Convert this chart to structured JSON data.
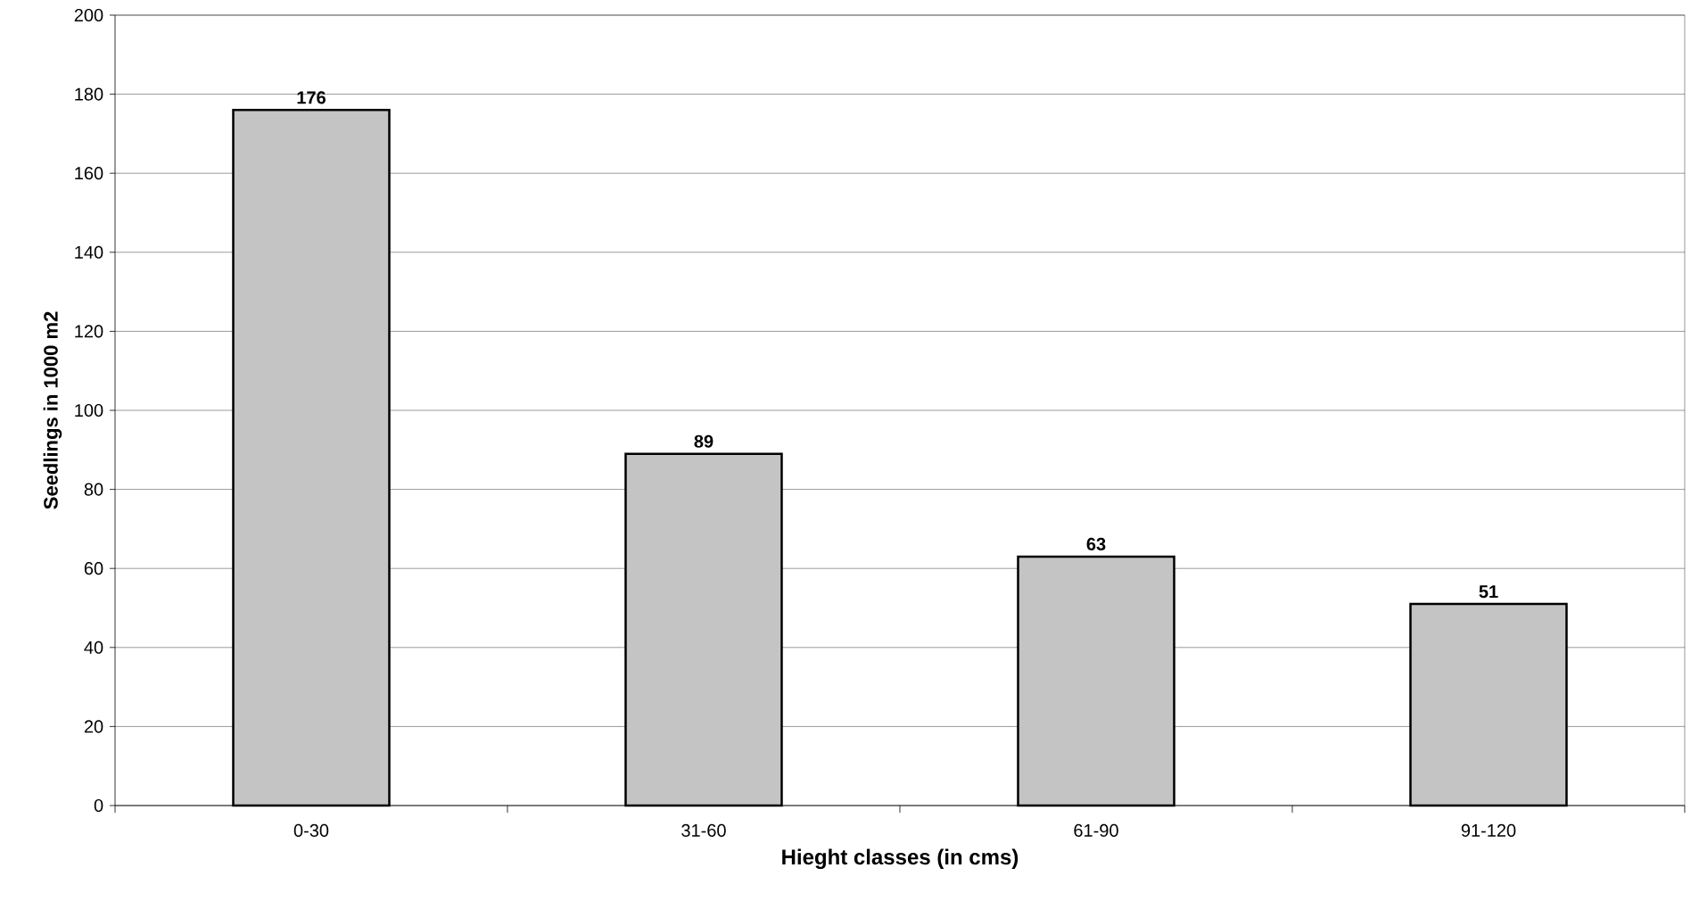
{
  "chart_data": {
    "type": "bar",
    "xlabel": "Hieght classes (in cms)",
    "ylabel": "Seedlings in 1000 m2",
    "categories": [
      "0-30",
      "31-60",
      "61-90",
      "91-120"
    ],
    "values": [
      176,
      89,
      63,
      51
    ],
    "color": "#c4c4c4",
    "ylim": [
      0,
      200
    ],
    "yticks": [
      0,
      20,
      40,
      60,
      80,
      100,
      120,
      140,
      160,
      180,
      200
    ],
    "grid": "y",
    "data_labels": true
  }
}
